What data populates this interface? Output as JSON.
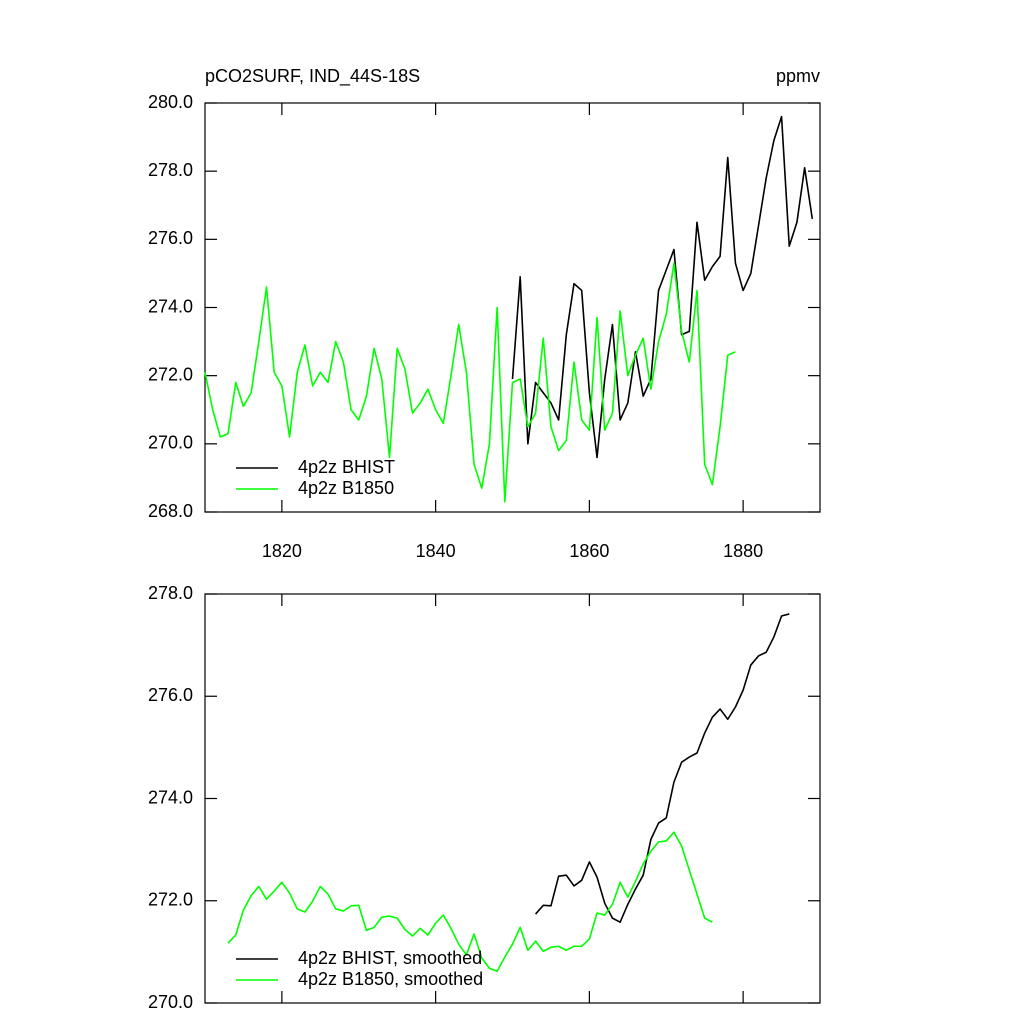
{
  "chart_data": [
    {
      "type": "line",
      "title": "pCO2SURF, IND_44S-18S",
      "subtitle": "ppmv",
      "x": [
        1810,
        1811,
        1812,
        1813,
        1814,
        1815,
        1816,
        1817,
        1818,
        1819,
        1820,
        1821,
        1822,
        1823,
        1824,
        1825,
        1826,
        1827,
        1828,
        1829,
        1830,
        1831,
        1832,
        1833,
        1834,
        1835,
        1836,
        1837,
        1838,
        1839,
        1840,
        1841,
        1842,
        1843,
        1844,
        1845,
        1846,
        1847,
        1848,
        1849,
        1850,
        1851,
        1852,
        1853,
        1854,
        1855,
        1856,
        1857,
        1858,
        1859,
        1860,
        1861,
        1862,
        1863,
        1864,
        1865,
        1866,
        1867,
        1868,
        1869,
        1870,
        1871,
        1872,
        1873,
        1874,
        1875,
        1876,
        1877,
        1878,
        1879,
        1880,
        1881,
        1882,
        1883,
        1884,
        1885,
        1886,
        1887,
        1888,
        1889
      ],
      "series": [
        {
          "name": "4p2z BHIST",
          "color": "#000000",
          "values": [
            null,
            null,
            null,
            null,
            null,
            null,
            null,
            null,
            null,
            null,
            null,
            null,
            null,
            null,
            null,
            null,
            null,
            null,
            null,
            null,
            null,
            null,
            null,
            null,
            null,
            null,
            null,
            null,
            null,
            null,
            null,
            null,
            null,
            null,
            null,
            null,
            null,
            null,
            null,
            null,
            271.9,
            274.9,
            270.0,
            271.8,
            271.5,
            271.2,
            270.7,
            273.2,
            274.7,
            274.5,
            271.5,
            269.6,
            271.9,
            273.5,
            270.7,
            271.2,
            272.7,
            271.4,
            271.9,
            274.5,
            275.1,
            275.7,
            273.2,
            273.3,
            276.5,
            274.8,
            275.2,
            275.5,
            278.4,
            275.3,
            274.5,
            275.0,
            276.4,
            277.8,
            278.9,
            279.6,
            275.8,
            276.5,
            278.1,
            276.6
          ]
        },
        {
          "name": "4p2z B1850",
          "color": "#00ff00",
          "values": [
            272.1,
            271.0,
            270.2,
            270.3,
            271.8,
            271.1,
            271.5,
            273.0,
            274.6,
            272.1,
            271.7,
            270.2,
            272.1,
            272.9,
            271.7,
            272.1,
            271.8,
            273.0,
            272.4,
            271.0,
            270.7,
            271.4,
            272.8,
            271.9,
            269.6,
            272.8,
            272.2,
            270.9,
            271.2,
            271.6,
            271.0,
            270.6,
            272.0,
            273.5,
            272.1,
            269.4,
            268.7,
            270.0,
            274.0,
            268.3,
            271.8,
            271.9,
            270.5,
            270.9,
            273.1,
            270.5,
            269.8,
            270.1,
            272.4,
            270.7,
            270.4,
            273.7,
            270.4,
            270.9,
            273.9,
            272.0,
            272.6,
            273.1,
            271.6,
            273.0,
            273.8,
            275.3,
            273.3,
            272.4,
            274.5,
            269.4,
            268.8,
            270.5,
            272.6,
            272.7,
            null,
            null,
            null,
            null,
            null,
            null,
            null,
            null,
            null,
            null
          ]
        }
      ],
      "xlim": [
        1810,
        1890
      ],
      "xticks": [
        1820,
        1840,
        1860,
        1880
      ],
      "ylim": [
        268,
        280
      ],
      "yticks": [
        {
          "value": 268,
          "label": "268.0"
        },
        {
          "value": 270,
          "label": "270.0"
        },
        {
          "value": 272,
          "label": "272.0"
        },
        {
          "value": 274,
          "label": "274.0"
        },
        {
          "value": 276,
          "label": "276.0"
        },
        {
          "value": 278,
          "label": "278.0"
        },
        {
          "value": 280,
          "label": "280.0"
        }
      ],
      "legend": "lower left",
      "grid": false
    },
    {
      "type": "line",
      "x": [
        1813,
        1814,
        1815,
        1816,
        1817,
        1818,
        1819,
        1820,
        1821,
        1822,
        1823,
        1824,
        1825,
        1826,
        1827,
        1828,
        1829,
        1830,
        1831,
        1832,
        1833,
        1834,
        1835,
        1836,
        1837,
        1838,
        1839,
        1840,
        1841,
        1842,
        1843,
        1844,
        1845,
        1846,
        1847,
        1848,
        1849,
        1850,
        1851,
        1852,
        1853,
        1854,
        1855,
        1856,
        1857,
        1858,
        1859,
        1860,
        1861,
        1862,
        1863,
        1864,
        1865,
        1866,
        1867,
        1868,
        1869,
        1870,
        1871,
        1872,
        1873,
        1874,
        1875,
        1876,
        1877,
        1878,
        1879,
        1880,
        1881,
        1882,
        1883,
        1884,
        1885,
        1886
      ],
      "series": [
        {
          "name": "4p2z BHIST, smoothed",
          "color": "#000000",
          "values": [
            null,
            null,
            null,
            null,
            null,
            null,
            null,
            null,
            null,
            null,
            null,
            null,
            null,
            null,
            null,
            null,
            null,
            null,
            null,
            null,
            null,
            null,
            null,
            null,
            null,
            null,
            null,
            null,
            null,
            null,
            null,
            null,
            null,
            null,
            null,
            null,
            null,
            null,
            null,
            null,
            271.74,
            271.91,
            271.9,
            272.48,
            272.5,
            272.29,
            272.4,
            272.76,
            272.46,
            271.95,
            271.66,
            271.58,
            271.93,
            272.23,
            272.5,
            273.2,
            273.52,
            273.62,
            274.32,
            274.71,
            274.81,
            274.89,
            275.28,
            275.59,
            275.75,
            275.55,
            275.79,
            276.12,
            276.61,
            276.79,
            276.86,
            277.16,
            277.57,
            277.61
          ]
        },
        {
          "name": "4p2z B1850, smoothed",
          "color": "#00ff00",
          "values": [
            271.17,
            271.33,
            271.82,
            272.1,
            272.28,
            272.03,
            272.19,
            272.36,
            272.15,
            271.84,
            271.78,
            271.99,
            272.28,
            272.13,
            271.84,
            271.8,
            271.9,
            271.91,
            271.42,
            271.48,
            271.68,
            271.7,
            271.66,
            271.44,
            271.31,
            271.46,
            271.33,
            271.56,
            271.72,
            271.46,
            271.15,
            270.94,
            271.35,
            270.88,
            270.68,
            270.62,
            270.9,
            271.15,
            271.48,
            271.03,
            271.21,
            271.01,
            271.09,
            271.11,
            271.03,
            271.11,
            271.11,
            271.25,
            271.76,
            271.72,
            271.93,
            272.36,
            272.07,
            272.38,
            272.72,
            272.97,
            273.15,
            273.17,
            273.34,
            273.07,
            272.6,
            272.13,
            271.66,
            271.58,
            null,
            null,
            null,
            null,
            null,
            null,
            null,
            null,
            null,
            null
          ]
        }
      ],
      "xlim": [
        1810,
        1890
      ],
      "xticks": [
        1820,
        1840,
        1860,
        1880
      ],
      "ylim": [
        270,
        278
      ],
      "yticks": [
        {
          "value": 270,
          "label": "270.0"
        },
        {
          "value": 272,
          "label": "272.0"
        },
        {
          "value": 274,
          "label": "274.0"
        },
        {
          "value": 276,
          "label": "276.0"
        },
        {
          "value": 278,
          "label": "278.0"
        }
      ],
      "legend": "lower left",
      "grid": false
    }
  ]
}
